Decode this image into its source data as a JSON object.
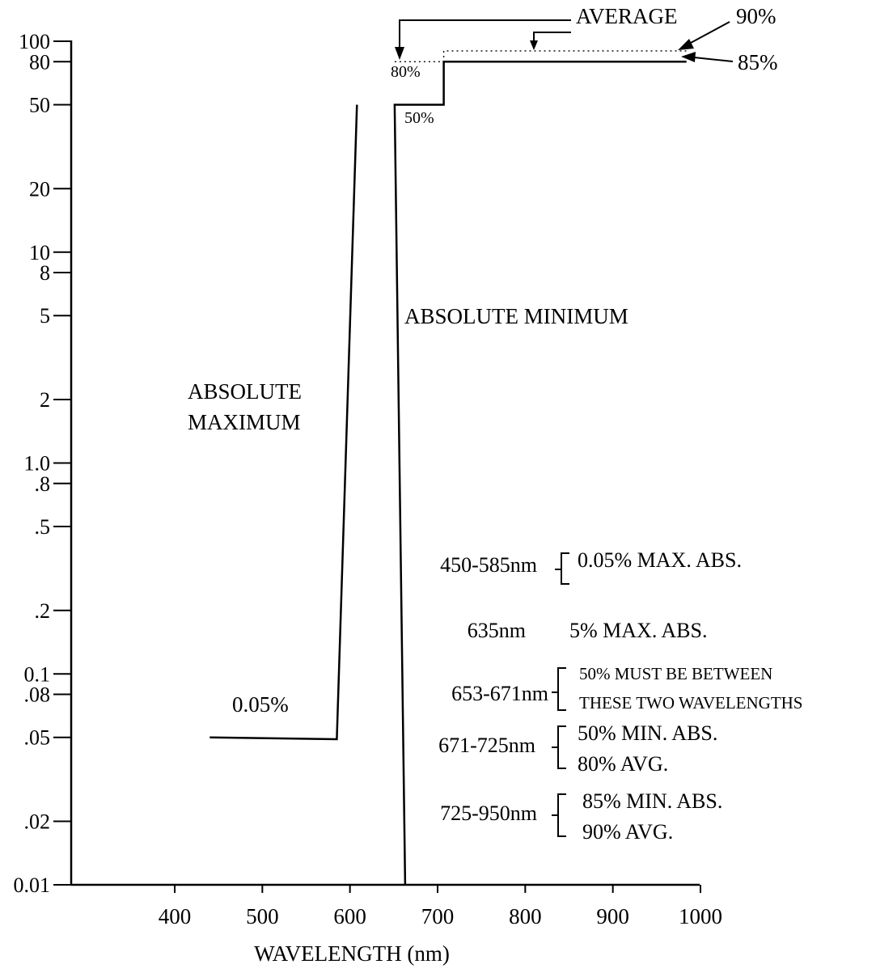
{
  "chart_data": {
    "type": "line",
    "xlabel": "WAVELENGTH (nm)",
    "ylabel": "",
    "y_scale": "log",
    "xlim": [
      290,
      1000
    ],
    "ylim": [
      0.01,
      100
    ],
    "x_ticks": [
      {
        "v": 400,
        "label": "400"
      },
      {
        "v": 500,
        "label": "500"
      },
      {
        "v": 600,
        "label": "600"
      },
      {
        "v": 700,
        "label": "700"
      },
      {
        "v": 800,
        "label": "800"
      },
      {
        "v": 900,
        "label": "900"
      },
      {
        "v": 1000,
        "label": "1000"
      }
    ],
    "y_ticks": [
      {
        "v": 100,
        "label": "100"
      },
      {
        "v": 80,
        "label": "80"
      },
      {
        "v": 50,
        "label": "50"
      },
      {
        "v": 20,
        "label": "20"
      },
      {
        "v": 10,
        "label": "10"
      },
      {
        "v": 8,
        "label": "8"
      },
      {
        "v": 5,
        "label": "5"
      },
      {
        "v": 2,
        "label": "2"
      },
      {
        "v": 1.0,
        "label": "1.0"
      },
      {
        "v": 0.8,
        "label": ".8"
      },
      {
        "v": 0.5,
        "label": ".5"
      },
      {
        "v": 0.2,
        "label": ".2"
      },
      {
        "v": 0.1,
        "label": "0.1"
      },
      {
        "v": 0.08,
        "label": ".08"
      },
      {
        "v": 0.05,
        "label": ".05"
      },
      {
        "v": 0.02,
        "label": ".02"
      },
      {
        "v": 0.01,
        "label": "0.01"
      }
    ],
    "series": [
      {
        "key": "max",
        "points": [
          [
            440,
            0.05
          ],
          [
            585,
            0.049
          ],
          [
            608,
            50
          ]
        ]
      },
      {
        "key": "min",
        "points": [
          [
            663,
            0.01
          ],
          [
            651,
            50
          ],
          [
            707,
            50
          ],
          [
            707,
            80
          ],
          [
            984,
            80
          ]
        ]
      },
      {
        "key": "avg",
        "style": "dotted",
        "points": [
          [
            651,
            80
          ],
          [
            707,
            80
          ],
          [
            707,
            90
          ],
          [
            984,
            90
          ]
        ]
      }
    ],
    "annotations": {
      "absolute_minimum": "ABSOLUTE MINIMUM",
      "absolute_maximum_1": "ABSOLUTE",
      "absolute_maximum_2": "MAXIMUM",
      "average": "AVERAGE",
      "pct_90": "90%",
      "pct_85": "85%",
      "pct_80": "80%",
      "pct_50": "50%",
      "pct_005": "0.05%"
    },
    "legend": [
      {
        "range": "450-585nm",
        "lines": [
          "0.05% MAX. ABS."
        ],
        "bracket": true
      },
      {
        "range": "635nm",
        "lines": [
          "5% MAX. ABS."
        ],
        "bracket": false
      },
      {
        "range": "653-671nm",
        "lines": [
          "50% MUST BE  BETWEEN",
          "THESE TWO WAVELENGTHS"
        ],
        "bracket": true
      },
      {
        "range": "671-725nm",
        "lines": [
          "50% MIN. ABS.",
          "80% AVG."
        ],
        "bracket": true
      },
      {
        "range": "725-950nm",
        "lines": [
          "85% MIN. ABS.",
          "90% AVG."
        ],
        "bracket": true
      }
    ]
  }
}
